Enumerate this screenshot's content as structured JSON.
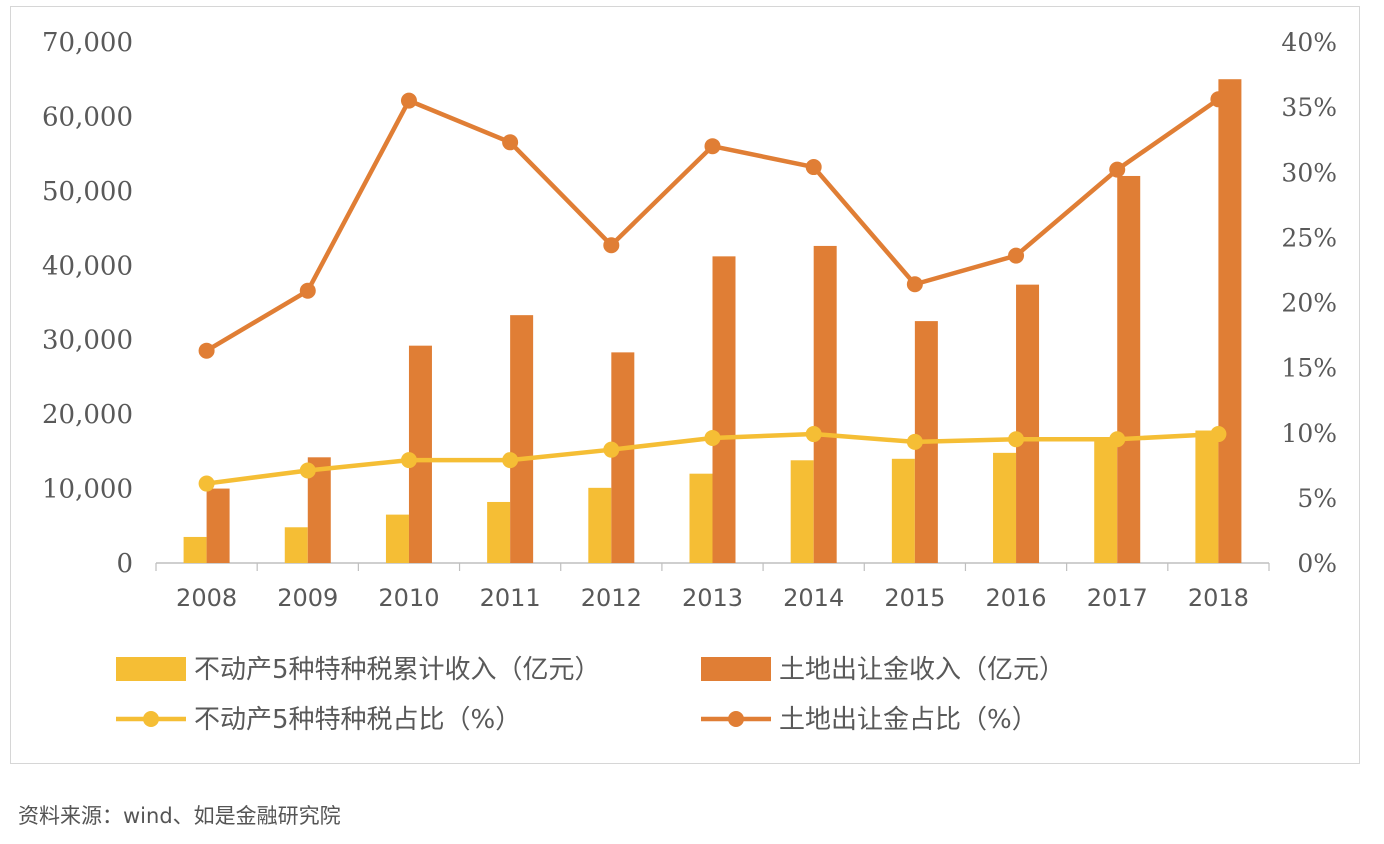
{
  "chart_data": {
    "type": "bar",
    "categories": [
      "2008",
      "2009",
      "2010",
      "2011",
      "2012",
      "2013",
      "2014",
      "2015",
      "2016",
      "2017",
      "2018"
    ],
    "y_left": {
      "ticks": [
        "0",
        "10,000",
        "20,000",
        "30,000",
        "40,000",
        "50,000",
        "60,000",
        "70,000"
      ],
      "ylim": [
        0,
        70000
      ]
    },
    "y_right": {
      "ticks": [
        "0%",
        "5%",
        "10%",
        "15%",
        "20%",
        "25%",
        "30%",
        "35%",
        "40%"
      ],
      "ylim": [
        0,
        40
      ]
    },
    "series": [
      {
        "name": "不动产5种特种税累计收入（亿元）",
        "kind": "bar",
        "axis": "left",
        "color": "#F5BE35",
        "values": [
          3500,
          4800,
          6500,
          8200,
          10100,
          12000,
          13800,
          14000,
          14800,
          16600,
          17800
        ]
      },
      {
        "name": "土地出让金收入（亿元）",
        "kind": "bar",
        "axis": "left",
        "color": "#E07E35",
        "values": [
          10000,
          14200,
          29200,
          33300,
          28300,
          41200,
          42600,
          32500,
          37400,
          52000,
          65000
        ]
      },
      {
        "name": "不动产5种特种税占比（%）",
        "kind": "line",
        "axis": "right",
        "color": "#F5BE35",
        "values": [
          6.1,
          7.1,
          7.9,
          7.9,
          8.7,
          9.6,
          9.9,
          9.3,
          9.5,
          9.5,
          9.9
        ]
      },
      {
        "name": "土地出让金占比（%）",
        "kind": "line",
        "axis": "right",
        "color": "#E07E35",
        "values": [
          16.3,
          20.9,
          35.5,
          32.3,
          24.4,
          32.0,
          30.4,
          21.4,
          23.6,
          30.2,
          35.6
        ]
      }
    ],
    "legend_position": "bottom",
    "grid": false
  },
  "source_note": "资料来源：wind、如是金融研究院"
}
